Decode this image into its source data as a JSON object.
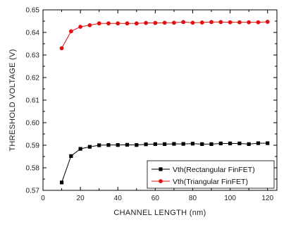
{
  "chart_data": {
    "type": "line",
    "xlabel": "CHANNEL LENGTH (nm)",
    "ylabel": "THRESHOLD VOLTAGE (V)",
    "xlim": [
      0,
      125
    ],
    "ylim": [
      0.57,
      0.65
    ],
    "x_ticks": [
      "0",
      "20",
      "40",
      "60",
      "80",
      "100",
      "120"
    ],
    "y_ticks": [
      "0.57",
      "0.58",
      "0.59",
      "0.60",
      "0.61",
      "0.62",
      "0.63",
      "0.64",
      "0.65"
    ],
    "grid": false,
    "legend_position": "bottom-right",
    "series": [
      {
        "name": "Vth(Rectangular FinFET)",
        "color": "#000000",
        "marker": "square",
        "x": [
          10,
          15,
          20,
          25,
          30,
          35,
          40,
          45,
          50,
          55,
          60,
          65,
          70,
          75,
          80,
          85,
          90,
          95,
          100,
          105,
          110,
          115,
          120
        ],
        "y": [
          0.5735,
          0.5852,
          0.5884,
          0.5893,
          0.59,
          0.5901,
          0.5901,
          0.5902,
          0.5901,
          0.5904,
          0.5905,
          0.5905,
          0.5906,
          0.5906,
          0.5907,
          0.5905,
          0.5905,
          0.5908,
          0.5908,
          0.5908,
          0.5905,
          0.5909,
          0.5909
        ]
      },
      {
        "name": "Vth(Triangular FinFET)",
        "color": "#e01010",
        "marker": "circle",
        "x": [
          10,
          15,
          20,
          25,
          30,
          35,
          40,
          45,
          50,
          55,
          60,
          65,
          70,
          75,
          80,
          85,
          90,
          95,
          100,
          105,
          110,
          115,
          120
        ],
        "y": [
          0.633,
          0.6405,
          0.6425,
          0.6432,
          0.644,
          0.644,
          0.644,
          0.644,
          0.644,
          0.6442,
          0.6442,
          0.6443,
          0.6443,
          0.6446,
          0.6443,
          0.6444,
          0.6446,
          0.6446,
          0.6445,
          0.6445,
          0.6445,
          0.6445,
          0.6447
        ]
      }
    ]
  }
}
